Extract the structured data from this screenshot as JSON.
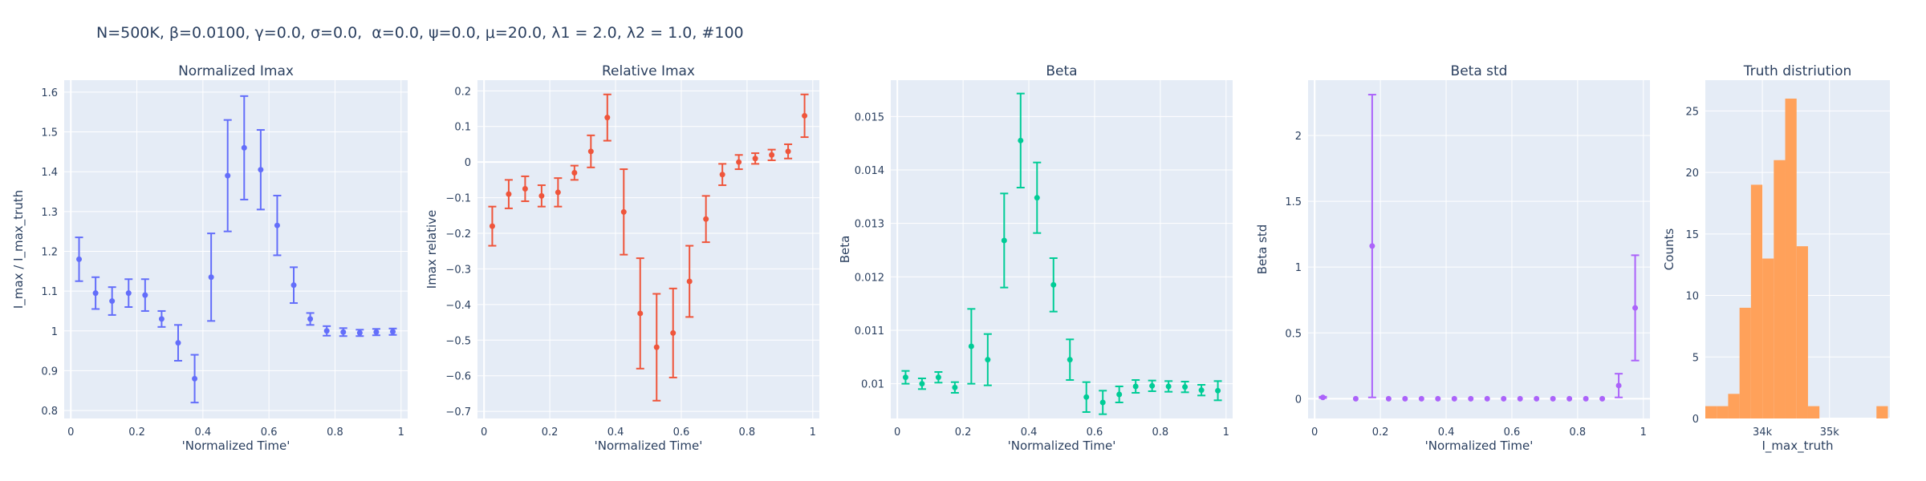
{
  "header": {
    "title": "N=500K, β=0.0100, γ=0.0, σ=0.0,  α=0.0, ψ=0.0, μ=20.0, λ1 = 2.0, λ2 = 1.0, #100"
  },
  "colors": {
    "plot_bg": "#e5ecf6",
    "grid": "#ffffff",
    "text": "#2a3f5f",
    "blue": "#636efa",
    "red": "#ef553b",
    "green": "#00cc96",
    "purple": "#ab63fa",
    "orange": "#ffa15a"
  },
  "chart_data": [
    {
      "type": "scatter",
      "title": "Normalized Imax",
      "xlabel": "'Normalized Time'",
      "ylabel": "I_max / I_max_truth",
      "color": "blue",
      "xlim": [
        -0.02,
        1.02
      ],
      "ylim": [
        0.78,
        1.63
      ],
      "xticks": [
        {
          "v": 0,
          "label": "0"
        },
        {
          "v": 0.2,
          "label": "0.2"
        },
        {
          "v": 0.4,
          "label": "0.4"
        },
        {
          "v": 0.6,
          "label": "0.6"
        },
        {
          "v": 0.8,
          "label": "0.8"
        },
        {
          "v": 1,
          "label": "1"
        }
      ],
      "yticks": [
        {
          "v": 0.8,
          "label": "0.8"
        },
        {
          "v": 0.9,
          "label": "0.9"
        },
        {
          "v": 1.0,
          "label": "1"
        },
        {
          "v": 1.1,
          "label": "1.1"
        },
        {
          "v": 1.2,
          "label": "1.2"
        },
        {
          "v": 1.3,
          "label": "1.3"
        },
        {
          "v": 1.4,
          "label": "1.4"
        },
        {
          "v": 1.5,
          "label": "1.5"
        },
        {
          "v": 1.6,
          "label": "1.6"
        }
      ],
      "x": [
        0.025,
        0.075,
        0.125,
        0.175,
        0.225,
        0.275,
        0.325,
        0.375,
        0.425,
        0.475,
        0.525,
        0.575,
        0.625,
        0.675,
        0.725,
        0.775,
        0.825,
        0.875,
        0.925,
        0.975
      ],
      "y": [
        1.18,
        1.095,
        1.075,
        1.095,
        1.09,
        1.03,
        0.97,
        0.88,
        1.135,
        1.39,
        1.46,
        1.405,
        1.265,
        1.115,
        1.03,
        1.0,
        0.997,
        0.995,
        0.997,
        0.998
      ],
      "err": [
        0.055,
        0.04,
        0.035,
        0.035,
        0.04,
        0.02,
        0.045,
        0.06,
        0.11,
        0.14,
        0.13,
        0.1,
        0.075,
        0.045,
        0.015,
        0.012,
        0.01,
        0.008,
        0.008,
        0.008
      ]
    },
    {
      "type": "scatter",
      "title": "Relative Imax",
      "xlabel": "'Normalized Time'",
      "ylabel": "Imax relative",
      "color": "red",
      "xlim": [
        -0.02,
        1.02
      ],
      "ylim": [
        -0.72,
        0.23
      ],
      "xticks": [
        {
          "v": 0,
          "label": "0"
        },
        {
          "v": 0.2,
          "label": "0.2"
        },
        {
          "v": 0.4,
          "label": "0.4"
        },
        {
          "v": 0.6,
          "label": "0.6"
        },
        {
          "v": 0.8,
          "label": "0.8"
        },
        {
          "v": 1,
          "label": "1"
        }
      ],
      "yticks": [
        {
          "v": -0.7,
          "label": "−0.7"
        },
        {
          "v": -0.6,
          "label": "−0.6"
        },
        {
          "v": -0.5,
          "label": "−0.5"
        },
        {
          "v": -0.4,
          "label": "−0.4"
        },
        {
          "v": -0.3,
          "label": "−0.3"
        },
        {
          "v": -0.2,
          "label": "−0.2"
        },
        {
          "v": -0.1,
          "label": "−0.1"
        },
        {
          "v": 0,
          "label": "0"
        },
        {
          "v": 0.1,
          "label": "0.1"
        },
        {
          "v": 0.2,
          "label": "0.2"
        }
      ],
      "x": [
        0.025,
        0.075,
        0.125,
        0.175,
        0.225,
        0.275,
        0.325,
        0.375,
        0.425,
        0.475,
        0.525,
        0.575,
        0.625,
        0.675,
        0.725,
        0.775,
        0.825,
        0.875,
        0.925,
        0.975
      ],
      "y": [
        -0.18,
        -0.09,
        -0.075,
        -0.095,
        -0.085,
        -0.03,
        0.03,
        0.125,
        -0.14,
        -0.425,
        -0.52,
        -0.48,
        -0.335,
        -0.16,
        -0.035,
        0.0,
        0.01,
        0.02,
        0.03,
        0.13
      ],
      "err": [
        0.055,
        0.04,
        0.035,
        0.03,
        0.04,
        0.02,
        0.045,
        0.065,
        0.12,
        0.155,
        0.15,
        0.125,
        0.1,
        0.065,
        0.03,
        0.02,
        0.015,
        0.015,
        0.02,
        0.06
      ]
    },
    {
      "type": "scatter",
      "title": "Beta",
      "xlabel": "'Normalized Time'",
      "ylabel": "Beta",
      "color": "green",
      "xlim": [
        -0.02,
        1.02
      ],
      "ylim": [
        0.00935,
        0.01568
      ],
      "xticks": [
        {
          "v": 0,
          "label": "0"
        },
        {
          "v": 0.2,
          "label": "0.2"
        },
        {
          "v": 0.4,
          "label": "0.4"
        },
        {
          "v": 0.6,
          "label": "0.6"
        },
        {
          "v": 0.8,
          "label": "0.8"
        },
        {
          "v": 1,
          "label": "1"
        }
      ],
      "yticks": [
        {
          "v": 0.01,
          "label": "0.01"
        },
        {
          "v": 0.011,
          "label": "0.011"
        },
        {
          "v": 0.012,
          "label": "0.012"
        },
        {
          "v": 0.013,
          "label": "0.013"
        },
        {
          "v": 0.014,
          "label": "0.014"
        },
        {
          "v": 0.015,
          "label": "0.015"
        }
      ],
      "x": [
        0.025,
        0.075,
        0.125,
        0.175,
        0.225,
        0.275,
        0.325,
        0.375,
        0.425,
        0.475,
        0.525,
        0.575,
        0.625,
        0.675,
        0.725,
        0.775,
        0.825,
        0.875,
        0.925,
        0.975
      ],
      "y": [
        0.01012,
        0.01,
        0.01012,
        0.00993,
        0.0107,
        0.01045,
        0.01268,
        0.01455,
        0.01348,
        0.01185,
        0.01045,
        0.00975,
        0.00965,
        0.0098,
        0.00995,
        0.00996,
        0.00995,
        0.00994,
        0.00988,
        0.00987
      ],
      "err": [
        0.00012,
        0.0001,
        0.0001,
        0.0001,
        0.0007,
        0.00048,
        0.00088,
        0.00088,
        0.00066,
        0.0005,
        0.00038,
        0.00028,
        0.00022,
        0.00015,
        0.00012,
        0.0001,
        0.0001,
        0.0001,
        0.0001,
        0.00018
      ]
    },
    {
      "type": "scatter",
      "title": "Beta std",
      "xlabel": "'Normalized Time'",
      "ylabel": "Beta std",
      "color": "purple",
      "xlim": [
        -0.02,
        1.02
      ],
      "ylim": [
        -0.15,
        2.42
      ],
      "xticks": [
        {
          "v": 0,
          "label": "0"
        },
        {
          "v": 0.2,
          "label": "0.2"
        },
        {
          "v": 0.4,
          "label": "0.4"
        },
        {
          "v": 0.6,
          "label": "0.6"
        },
        {
          "v": 0.8,
          "label": "0.8"
        },
        {
          "v": 1,
          "label": "1"
        }
      ],
      "yticks": [
        {
          "v": 0,
          "label": "0"
        },
        {
          "v": 0.5,
          "label": "0.5"
        },
        {
          "v": 1,
          "label": "1"
        },
        {
          "v": 1.5,
          "label": "1.5"
        },
        {
          "v": 2,
          "label": "2"
        }
      ],
      "x": [
        0.025,
        0.125,
        0.175,
        0.225,
        0.275,
        0.325,
        0.375,
        0.425,
        0.475,
        0.525,
        0.575,
        0.625,
        0.675,
        0.725,
        0.775,
        0.825,
        0.875,
        0.925,
        0.975
      ],
      "y": [
        0.01,
        0.0,
        1.16,
        0.0,
        0.0,
        0.0,
        0.0,
        0.0,
        0.0,
        0.0,
        0.0,
        0.0,
        0.0,
        0.0,
        0.0,
        0.0,
        0.0,
        0.1,
        0.69
      ],
      "err": [
        0.005,
        0.0,
        1.15,
        0.0,
        0.0,
        0.0,
        0.0,
        0.0,
        0.0,
        0.0,
        0.0,
        0.0,
        0.0,
        0.0,
        0.0,
        0.0,
        0.0,
        0.09,
        0.4
      ]
    },
    {
      "type": "histogram",
      "title": "Truth distriution",
      "xlabel": "I_max_truth",
      "ylabel": "Counts",
      "color": "orange",
      "xlim": [
        33150,
        35900
      ],
      "ylim": [
        0,
        27.5
      ],
      "xticks": [
        {
          "v": 34000,
          "label": "34k"
        },
        {
          "v": 35000,
          "label": "35k"
        }
      ],
      "yticks": [
        {
          "v": 0,
          "label": "0"
        },
        {
          "v": 5,
          "label": "5"
        },
        {
          "v": 10,
          "label": "10"
        },
        {
          "v": 15,
          "label": "15"
        },
        {
          "v": 20,
          "label": "20"
        },
        {
          "v": 25,
          "label": "25"
        }
      ],
      "bin_start": 33150,
      "bin_width": 170,
      "counts": [
        1,
        1,
        2,
        9,
        19,
        13,
        21,
        26,
        14,
        1,
        0,
        0,
        0,
        0,
        0,
        1
      ]
    }
  ]
}
